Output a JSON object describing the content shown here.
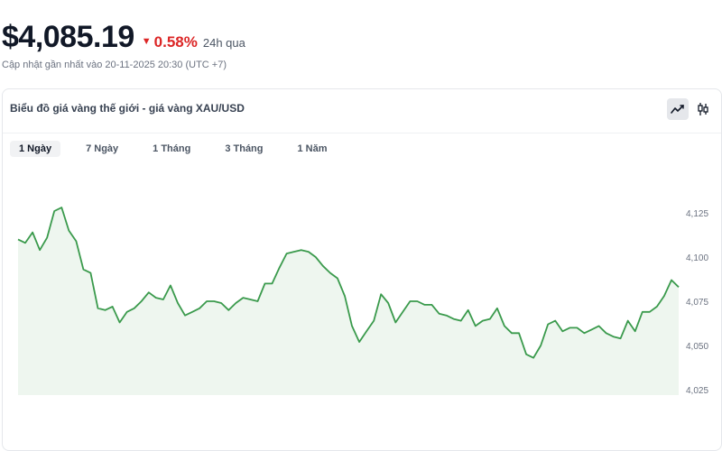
{
  "header": {
    "price": "$4,085.19",
    "change_percent": "0.58%",
    "change_direction": "down",
    "change_period": "24h qua",
    "updated": "Cập nhật gần nhất vào 20-11-2025 20:30 (UTC +7)"
  },
  "card": {
    "title": "Biểu đồ giá vàng thế giới - giá vàng XAU/USD",
    "chart_types": [
      {
        "name": "line",
        "icon": "line-chart-icon",
        "active": true
      },
      {
        "name": "candlestick",
        "icon": "candlestick-icon",
        "active": false
      }
    ],
    "tabs": [
      {
        "label": "1 Ngày",
        "active": true
      },
      {
        "label": "7 Ngày",
        "active": false
      },
      {
        "label": "1 Tháng",
        "active": false
      },
      {
        "label": "3 Tháng",
        "active": false
      },
      {
        "label": "1 Năm",
        "active": false
      }
    ]
  },
  "colors": {
    "line": "#3a9a4c",
    "area": "#eef6ef",
    "down": "#dc2626"
  },
  "chart_data": {
    "type": "area",
    "title": "",
    "xlabel": "",
    "ylabel": "",
    "ylim": [
      4025,
      4150
    ],
    "y_ticks": [
      4025,
      4050,
      4075,
      4100,
      4125
    ],
    "y_tick_labels": [
      "4,025",
      "4,050",
      "4,075",
      "4,100",
      "4,125"
    ],
    "grid": false,
    "series": [
      {
        "values": [
          4110,
          4108,
          4114,
          4104,
          4111,
          4126,
          4128,
          4115,
          4109,
          4093,
          4091,
          4071,
          4070,
          4072,
          4063,
          4069,
          4071,
          4075,
          4080,
          4077,
          4076,
          4084,
          4074,
          4067,
          4069,
          4071,
          4075,
          4075,
          4074,
          4070,
          4074,
          4077,
          4076,
          4075,
          4085,
          4085,
          4094,
          4102,
          4103,
          4104,
          4103,
          4100,
          4095,
          4091,
          4088,
          4078,
          4061,
          4052,
          4058,
          4064,
          4079,
          4074,
          4063,
          4069,
          4075,
          4075,
          4073,
          4073,
          4068,
          4067,
          4065,
          4064,
          4070,
          4061,
          4064,
          4065,
          4071,
          4061,
          4057,
          4057,
          4045,
          4043,
          4050,
          4062,
          4064,
          4058,
          4060,
          4060,
          4057,
          4059,
          4061,
          4057,
          4055,
          4054,
          4064,
          4058,
          4069,
          4069,
          4072,
          4078,
          4087,
          4083
        ]
      }
    ]
  }
}
